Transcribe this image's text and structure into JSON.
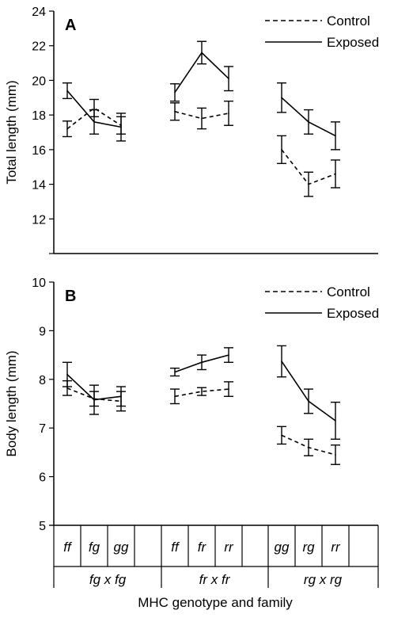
{
  "figure": {
    "xlabel": "MHC genotype and family",
    "families": [
      {
        "label": "fg x fg",
        "genotypes": [
          "ff",
          "fg",
          "gg"
        ]
      },
      {
        "label": "fr x fr",
        "genotypes": [
          "ff",
          "fr",
          "rr"
        ]
      },
      {
        "label": "rg x rg",
        "genotypes": [
          "gg",
          "rg",
          "rr"
        ]
      }
    ]
  },
  "chart_data": [
    {
      "type": "line",
      "panel_label": "A",
      "ylabel": "Total length (mm)",
      "ylim": [
        10,
        24
      ],
      "yticks": [
        12,
        14,
        16,
        18,
        20,
        22,
        24
      ],
      "legend": {
        "position": "top-right",
        "entries": [
          "Control",
          "Exposed"
        ]
      },
      "categories": [
        "ff",
        "fg",
        "gg",
        "ff",
        "fr",
        "rr",
        "gg",
        "rg",
        "rr"
      ],
      "series": [
        {
          "name": "Control",
          "style": "dashed",
          "values": [
            17.2,
            18.4,
            17.4,
            18.2,
            17.8,
            18.1,
            16.0,
            14.0,
            14.6
          ],
          "errors": [
            0.45,
            0.5,
            0.5,
            0.5,
            0.6,
            0.7,
            0.8,
            0.7,
            0.8
          ]
        },
        {
          "name": "Exposed",
          "style": "solid",
          "values": [
            19.4,
            17.6,
            17.3,
            19.3,
            21.6,
            20.1,
            19.0,
            17.6,
            16.8
          ],
          "errors": [
            0.45,
            0.7,
            0.8,
            0.5,
            0.65,
            0.7,
            0.85,
            0.7,
            0.8
          ]
        }
      ]
    },
    {
      "type": "line",
      "panel_label": "B",
      "ylabel": "Body length (mm)",
      "ylim": [
        5,
        10
      ],
      "yticks": [
        5,
        6,
        7,
        8,
        9,
        10
      ],
      "legend": {
        "position": "top-right",
        "entries": [
          "Control",
          "Exposed"
        ]
      },
      "categories": [
        "ff",
        "fg",
        "gg",
        "ff",
        "fr",
        "rr",
        "gg",
        "rg",
        "rr"
      ],
      "series": [
        {
          "name": "Control",
          "style": "dashed",
          "values": [
            7.82,
            7.6,
            7.55,
            7.65,
            7.75,
            7.8,
            6.85,
            6.6,
            6.45
          ],
          "errors": [
            0.15,
            0.15,
            0.2,
            0.15,
            0.08,
            0.15,
            0.18,
            0.17,
            0.2
          ]
        },
        {
          "name": "Exposed",
          "style": "solid",
          "values": [
            8.1,
            7.58,
            7.65,
            8.15,
            8.35,
            8.5,
            8.37,
            7.55,
            7.15
          ],
          "errors": [
            0.25,
            0.3,
            0.2,
            0.08,
            0.15,
            0.15,
            0.32,
            0.25,
            0.38
          ]
        }
      ]
    }
  ]
}
